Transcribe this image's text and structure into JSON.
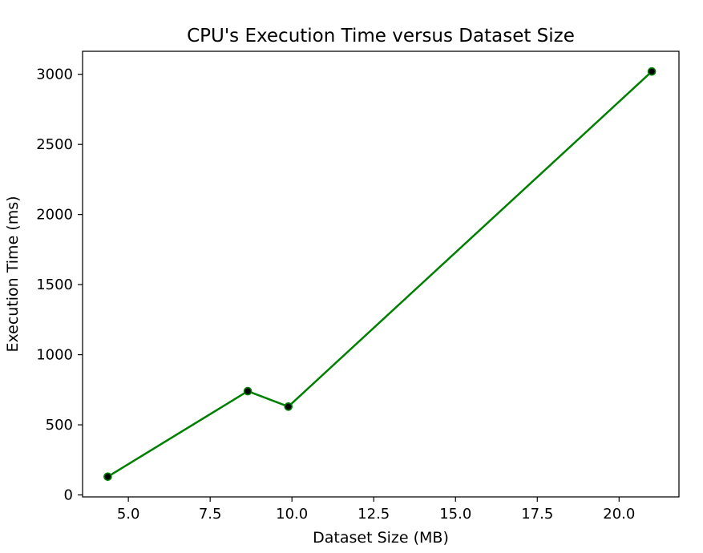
{
  "chart_data": {
    "type": "line",
    "title": "CPU's Execution Time versus Dataset Size",
    "xlabel": "Dataset Size (MB)",
    "ylabel": "Execution Time (ms)",
    "x": [
      4.37,
      8.65,
      9.89,
      21.0
    ],
    "series": [
      {
        "values": [
          130,
          740,
          630,
          3020
        ],
        "line_color": "#008000",
        "marker_color": "#000000",
        "marker_edge_color": "#008000",
        "marker": "circle"
      }
    ],
    "xlim": [
      3.6,
      21.83
    ],
    "ylim": [
      -14,
      3164
    ],
    "x_ticks": [
      5.0,
      7.5,
      10.0,
      12.5,
      15.0,
      17.5,
      20.0
    ],
    "x_tick_labels": [
      "5.0",
      "7.5",
      "10.0",
      "12.5",
      "15.0",
      "17.5",
      "20.0"
    ],
    "y_ticks": [
      0,
      500,
      1000,
      1500,
      2000,
      2500,
      3000
    ],
    "y_tick_labels": [
      "0",
      "500",
      "1000",
      "1500",
      "2000",
      "2500",
      "3000"
    ],
    "grid": false,
    "legend": false
  }
}
